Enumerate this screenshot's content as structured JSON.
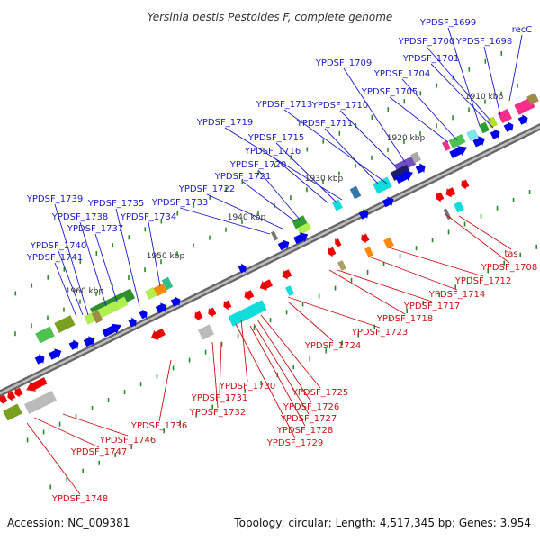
{
  "header": {
    "title": "Yersinia pestis Pestoides F, complete genome"
  },
  "footer": {
    "accession": "Accession: NC_009381",
    "topology": "Topology: circular; Length: 4,517,345 bp; Genes: 3,954"
  },
  "scale_labels": [
    "1910 kbp",
    "1920 kbp",
    "1930 kbp",
    "1940 kbp",
    "1950 kbp",
    "1960 kbp"
  ],
  "forward_genes": [
    "YPDSF_1699",
    "YPDSF_1700",
    "YPDSF_1698",
    "recC",
    "YPDSF_1701",
    "YPDSF_1709",
    "YPDSF_1704",
    "YPDSF_1705",
    "YPDSF_1713",
    "YPDSF_1710",
    "YPDSF_1711",
    "YPDSF_1719",
    "YPDSF_1715",
    "YPDSF_1716",
    "YPDSF_1720",
    "YPDSF_1721",
    "YPDSF_1722",
    "YPDSF_1733",
    "YPDSF_1739",
    "YPDSF_1735",
    "YPDSF_1738",
    "YPDSF_1734",
    "YPDSF_1737",
    "YPDSF_1740",
    "YPDSF_1741"
  ],
  "reverse_genes": [
    "tas",
    "YPDSF_1708",
    "YPDSF_1712",
    "YPDSF_1714",
    "YPDSF_1717",
    "YPDSF_1718",
    "YPDSF_1723",
    "YPDSF_1724",
    "YPDSF_1725",
    "YPDSF_1730",
    "YPDSF_1726",
    "YPDSF_1731",
    "YPDSF_1727",
    "YPDSF_1732",
    "YPDSF_1728",
    "YPDSF_1736",
    "YPDSF_1729",
    "YPDSF_1746",
    "YPDSF_1747",
    "YPDSF_1748"
  ],
  "colors": {
    "forward_label": "#1a1acd",
    "reverse_label": "#cc1111",
    "forward_gene": "#0000ee",
    "reverse_gene": "#ee0000",
    "backbone": "#888888"
  }
}
